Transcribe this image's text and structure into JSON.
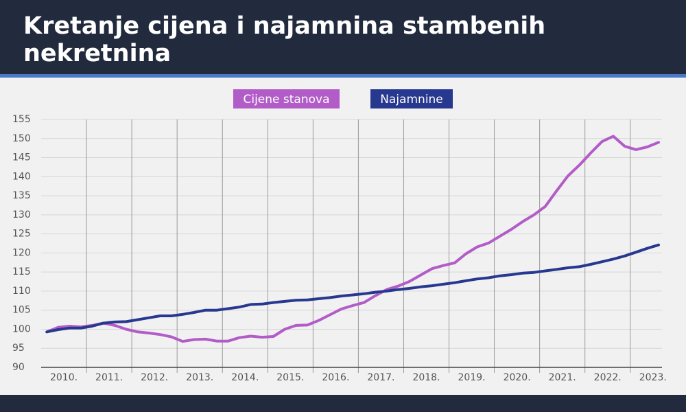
{
  "chart_data": {
    "type": "line",
    "title": "Kretanje cijena i najamnina stambenih nekretnina",
    "x": [
      2010.125,
      2010.375,
      2010.625,
      2010.875,
      2011.125,
      2011.375,
      2011.625,
      2011.875,
      2012.125,
      2012.375,
      2012.625,
      2012.875,
      2013.125,
      2013.375,
      2013.625,
      2013.875,
      2014.125,
      2014.375,
      2014.625,
      2014.875,
      2015.125,
      2015.375,
      2015.625,
      2015.875,
      2016.125,
      2016.375,
      2016.625,
      2016.875,
      2017.125,
      2017.375,
      2017.625,
      2017.875,
      2018.125,
      2018.375,
      2018.625,
      2018.875,
      2019.125,
      2019.375,
      2019.625,
      2019.875,
      2020.125,
      2020.375,
      2020.625,
      2020.875,
      2021.125,
      2021.375,
      2021.625,
      2021.875,
      2022.125,
      2022.375,
      2022.625,
      2022.875,
      2023.125,
      2023.375,
      2023.625
    ],
    "series": [
      {
        "name": "Cijene stanova",
        "color": "#b25cc8",
        "values": [
          99.3,
          100.5,
          100.8,
          100.6,
          101,
          101.6,
          101,
          100,
          99.3,
          99,
          98.6,
          98,
          96.8,
          97.3,
          97.4,
          96.9,
          96.9,
          97.8,
          98.2,
          97.9,
          98.1,
          100,
          101,
          101.1,
          102.3,
          103.8,
          105.3,
          106.2,
          107,
          108.8,
          110.4,
          111.3,
          112.5,
          114.2,
          115.9,
          116.7,
          117.4,
          119.8,
          121.6,
          122.6,
          124.4,
          126.2,
          128.2,
          130,
          132.2,
          136.3,
          140.2,
          143,
          146.2,
          149.2,
          150.6,
          148,
          147.1,
          147.8,
          149
        ]
      },
      {
        "name": "Najamnine",
        "color": "#27388f",
        "values": [
          99.3,
          99.9,
          100.3,
          100.3,
          100.8,
          101.6,
          101.9,
          102,
          102.5,
          103,
          103.5,
          103.5,
          103.9,
          104.4,
          105,
          105,
          105.4,
          105.8,
          106.5,
          106.6,
          107,
          107.3,
          107.6,
          107.7,
          108,
          108.3,
          108.7,
          109,
          109.3,
          109.7,
          110,
          110.4,
          110.7,
          111.1,
          111.4,
          111.8,
          112.2,
          112.7,
          113.2,
          113.5,
          114,
          114.3,
          114.7,
          114.9,
          115.3,
          115.7,
          116.1,
          116.4,
          117,
          117.7,
          118.4,
          119.2,
          120.2,
          121.2,
          122.1
        ]
      }
    ],
    "xlim": [
      2010,
      2023.7
    ],
    "xticks": [
      {
        "value": 2010.5,
        "label": "2010."
      },
      {
        "value": 2011.5,
        "label": "2011."
      },
      {
        "value": 2012.5,
        "label": "2012."
      },
      {
        "value": 2013.5,
        "label": "2013."
      },
      {
        "value": 2014.5,
        "label": "2014."
      },
      {
        "value": 2015.5,
        "label": "2015."
      },
      {
        "value": 2016.5,
        "label": "2016."
      },
      {
        "value": 2017.5,
        "label": "2017."
      },
      {
        "value": 2018.5,
        "label": "2018."
      },
      {
        "value": 2019.5,
        "label": "2019."
      },
      {
        "value": 2020.5,
        "label": "2020."
      },
      {
        "value": 2021.5,
        "label": "2021."
      },
      {
        "value": 2022.5,
        "label": "2022."
      },
      {
        "value": 2023.5,
        "label": "2023."
      }
    ],
    "xgrid": [
      2011,
      2012,
      2013,
      2014,
      2015,
      2016,
      2017,
      2018,
      2019,
      2020,
      2021,
      2022,
      2023
    ],
    "ylim": [
      90,
      155
    ],
    "yticks": [
      90,
      95,
      100,
      105,
      110,
      115,
      120,
      125,
      130,
      135,
      140,
      145,
      150,
      155
    ],
    "grid": true
  }
}
